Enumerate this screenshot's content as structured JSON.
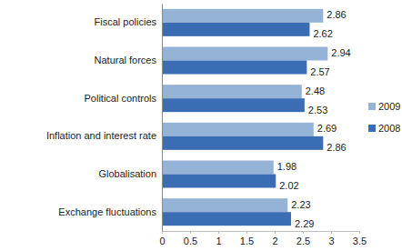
{
  "chart_data": {
    "type": "bar",
    "orientation": "horizontal",
    "categories": [
      "Fiscal policies",
      "Natural forces",
      "Political controls",
      "Inflation and interest rate",
      "Globalisation",
      "Exchange fluctuations"
    ],
    "series": [
      {
        "name": "2009",
        "color": "#95b3d7",
        "values": [
          2.86,
          2.94,
          2.48,
          2.69,
          1.98,
          2.23
        ]
      },
      {
        "name": "2008",
        "color": "#3a6db3",
        "values": [
          2.62,
          2.57,
          2.53,
          2.86,
          2.02,
          2.29
        ]
      }
    ],
    "xlim": [
      0,
      3.5
    ],
    "xticks": [
      0,
      0.5,
      1,
      1.5,
      2,
      2.5,
      3,
      3.5
    ],
    "grid": false,
    "legend": "right",
    "data_labels": true
  }
}
